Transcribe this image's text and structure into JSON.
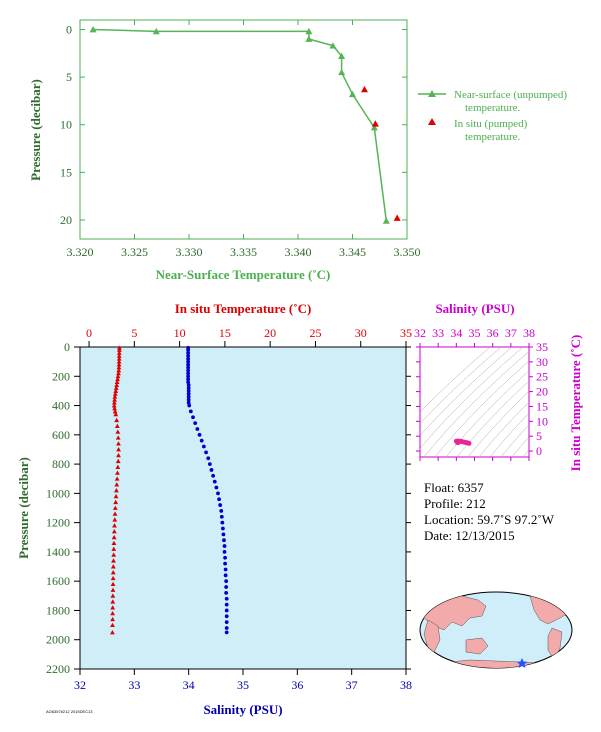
{
  "chart_data": [
    {
      "type": "line",
      "xlabel": "Near-Surface Temperature (˚C)",
      "ylabel": "Pressure (decibar)",
      "xlim": [
        3.32,
        3.35
      ],
      "ylim": [
        22,
        -1
      ],
      "xticks": [
        "3.320",
        "3.325",
        "3.330",
        "3.335",
        "3.340",
        "3.345",
        "3.350"
      ],
      "yticks": [
        "0",
        "5",
        "10",
        "15",
        "20"
      ],
      "grid": false,
      "legend_position": "right",
      "series": [
        {
          "name": "Near-surface (unpumped) temperature.",
          "color": "#55b455",
          "marker": "triangle",
          "points": [
            [
              3.3212,
              0.0
            ],
            [
              3.327,
              0.2
            ],
            [
              3.341,
              0.2
            ],
            [
              3.341,
              1.0
            ],
            [
              3.3432,
              1.7
            ],
            [
              3.344,
              2.8
            ],
            [
              3.344,
              4.5
            ],
            [
              3.345,
              6.8
            ],
            [
              3.347,
              10.3
            ],
            [
              3.3481,
              20.1
            ]
          ]
        },
        {
          "name": "In situ (pumped) temperature.",
          "color": "#dd0000",
          "marker": "triangle",
          "points": [
            [
              3.3461,
              6.3
            ],
            [
              3.3471,
              9.9
            ],
            [
              3.3491,
              19.8
            ]
          ]
        }
      ]
    },
    {
      "type": "line",
      "xlabel_top": "In situ Temperature (˚C)",
      "xlabel_bottom": "Salinity (PSU)",
      "ylabel": "Pressure (decibar)",
      "temperature_lim": [
        -1,
        35
      ],
      "salinity_lim": [
        32,
        38
      ],
      "pressure_lim": [
        0,
        2200
      ],
      "temperature_ticks": [
        "0",
        "5",
        "10",
        "15",
        "20",
        "25",
        "30",
        "35"
      ],
      "salinity_ticks": [
        "32",
        "33",
        "34",
        "35",
        "36",
        "37",
        "38"
      ],
      "pressure_ticks": [
        "0",
        "200",
        "400",
        "600",
        "800",
        "1000",
        "1200",
        "1400",
        "1600",
        "1800",
        "2000",
        "2200"
      ],
      "series": [
        {
          "name": "Temperature",
          "color": "#dd0000",
          "marker": "triangle",
          "pressure": [
            5,
            20,
            40,
            60,
            80,
            100,
            120,
            140,
            160,
            180,
            200,
            220,
            240,
            260,
            280,
            300,
            320,
            340,
            360,
            380,
            400,
            420,
            440,
            460,
            500,
            540,
            580,
            620,
            660,
            700,
            740,
            780,
            820,
            860,
            900,
            940,
            980,
            1020,
            1060,
            1100,
            1140,
            1180,
            1220,
            1260,
            1300,
            1340,
            1380,
            1420,
            1460,
            1500,
            1540,
            1580,
            1620,
            1660,
            1700,
            1740,
            1780,
            1820,
            1860,
            1900,
            1950
          ],
          "temperature": [
            3.35,
            3.35,
            3.34,
            3.33,
            3.33,
            3.32,
            3.31,
            3.3,
            3.28,
            3.25,
            3.2,
            3.15,
            3.1,
            3.05,
            3.0,
            2.95,
            2.9,
            2.85,
            2.82,
            2.8,
            2.78,
            2.82,
            2.88,
            2.95,
            3.05,
            3.12,
            3.18,
            3.22,
            3.25,
            3.26,
            3.25,
            3.22,
            3.18,
            3.14,
            3.1,
            3.06,
            3.02,
            2.98,
            2.94,
            2.9,
            2.87,
            2.84,
            2.81,
            2.79,
            2.77,
            2.75,
            2.73,
            2.72,
            2.7,
            2.68,
            2.67,
            2.66,
            2.65,
            2.64,
            2.63,
            2.62,
            2.61,
            2.6,
            2.6,
            2.59,
            2.58
          ]
        },
        {
          "name": "Salinity",
          "color": "#0000cc",
          "marker": "circle",
          "pressure": [
            5,
            20,
            40,
            60,
            80,
            100,
            120,
            140,
            160,
            180,
            200,
            220,
            240,
            260,
            280,
            300,
            320,
            340,
            360,
            380,
            400,
            440,
            480,
            520,
            560,
            600,
            640,
            680,
            720,
            760,
            800,
            840,
            880,
            920,
            960,
            1000,
            1040,
            1080,
            1120,
            1160,
            1200,
            1240,
            1280,
            1320,
            1360,
            1400,
            1440,
            1480,
            1520,
            1560,
            1600,
            1640,
            1680,
            1720,
            1760,
            1800,
            1840,
            1880,
            1920,
            1950
          ],
          "salinity": [
            33.99,
            33.99,
            33.99,
            33.99,
            33.99,
            33.99,
            33.99,
            33.99,
            33.99,
            33.99,
            33.99,
            33.99,
            33.99,
            34.0,
            34.0,
            34.0,
            34.0,
            34.0,
            34.0,
            34.0,
            34.01,
            34.04,
            34.08,
            34.12,
            34.16,
            34.2,
            34.24,
            34.28,
            34.32,
            34.36,
            34.39,
            34.42,
            34.45,
            34.48,
            34.51,
            34.54,
            34.56,
            34.58,
            34.6,
            34.61,
            34.62,
            34.63,
            34.64,
            34.65,
            34.66,
            34.66,
            34.67,
            34.67,
            34.68,
            34.68,
            34.69,
            34.69,
            34.69,
            34.7,
            34.7,
            34.7,
            34.7,
            34.7,
            34.7,
            34.7
          ]
        }
      ]
    },
    {
      "type": "scatter",
      "xlabel": "Salinity (PSU)",
      "ylabel": "In situ Temperature (˚C)",
      "xlim": [
        32,
        38
      ],
      "ylim": [
        -2,
        35
      ],
      "xticks": [
        "32",
        "33",
        "34",
        "35",
        "36",
        "37",
        "38"
      ],
      "yticks": [
        "0",
        "5",
        "10",
        "15",
        "20",
        "25",
        "30",
        "35"
      ],
      "color": "#ee2299",
      "points": [
        [
          34.0,
          3.35
        ],
        [
          34.02,
          3.2
        ],
        [
          34.05,
          2.9
        ],
        [
          34.1,
          2.8
        ],
        [
          34.15,
          3.1
        ],
        [
          34.2,
          3.25
        ],
        [
          34.3,
          3.2
        ],
        [
          34.4,
          3.05
        ],
        [
          34.5,
          2.9
        ],
        [
          34.6,
          2.75
        ],
        [
          34.68,
          2.62
        ],
        [
          34.7,
          2.58
        ],
        [
          34.12,
          3.4
        ],
        [
          34.25,
          3.3
        ],
        [
          34.35,
          3.1
        ],
        [
          34.45,
          2.95
        ],
        [
          34.55,
          2.85
        ],
        [
          34.65,
          2.7
        ]
      ]
    }
  ],
  "float_info": {
    "float": "Float:  6357",
    "profile": "Profile:  212",
    "location": "Location:  59.7˚S  97.2˚W",
    "date": "Date:  12/13/2015"
  },
  "map": {
    "marker_color": "#2255ff",
    "land_color": "#f2aaaa",
    "ocean_color": "#cfeefa"
  },
  "footer_code": "AO6357#212 2015DEC13"
}
